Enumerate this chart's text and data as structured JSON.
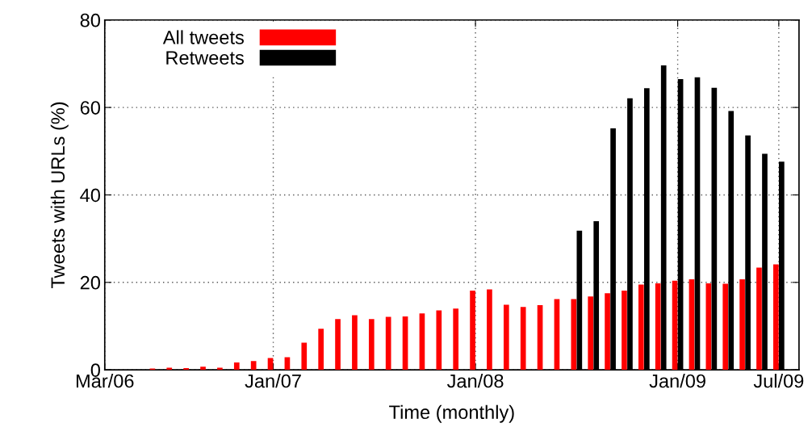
{
  "chart_data": {
    "type": "bar",
    "xlabel": "Time (monthly)",
    "ylabel": "Tweets with URLs (%)",
    "categories": [
      "Mar/06",
      null,
      null,
      null,
      null,
      null,
      null,
      null,
      null,
      null,
      "Jan/07",
      null,
      null,
      null,
      null,
      null,
      null,
      null,
      null,
      null,
      null,
      null,
      "Jan/08",
      null,
      null,
      null,
      null,
      null,
      null,
      null,
      null,
      null,
      null,
      null,
      "Jan/09",
      null,
      null,
      null,
      null,
      null,
      "Jul/09"
    ],
    "series": [
      {
        "name": "All tweets",
        "color": "#ff0000",
        "values": [
          null,
          null,
          null,
          0.3,
          0.5,
          0.4,
          0.7,
          0.5,
          1.7,
          2.0,
          2.7,
          2.9,
          6.2,
          9.4,
          11.6,
          12.5,
          11.6,
          12.1,
          12.2,
          12.9,
          13.6,
          14.0,
          18.1,
          18.4,
          14.9,
          14.4,
          14.8,
          16.2,
          16.2,
          16.8,
          17.5,
          18.1,
          19.5,
          19.8,
          20.4,
          20.7,
          19.8,
          19.7,
          20.7,
          23.4,
          24.1
        ]
      },
      {
        "name": "Retweets",
        "color": "#000000",
        "values": [
          null,
          null,
          null,
          null,
          null,
          null,
          null,
          null,
          null,
          null,
          null,
          null,
          null,
          null,
          null,
          null,
          null,
          null,
          null,
          null,
          null,
          null,
          null,
          null,
          null,
          null,
          null,
          null,
          31.8,
          34.0,
          55.2,
          62.1,
          64.4,
          69.6,
          66.5,
          66.9,
          64.5,
          59.2,
          53.6,
          49.4,
          47.6
        ]
      }
    ],
    "ylim": [
      0,
      80
    ],
    "yticks": [
      0,
      20,
      40,
      60,
      80
    ],
    "grid": true,
    "legend": "top left"
  }
}
